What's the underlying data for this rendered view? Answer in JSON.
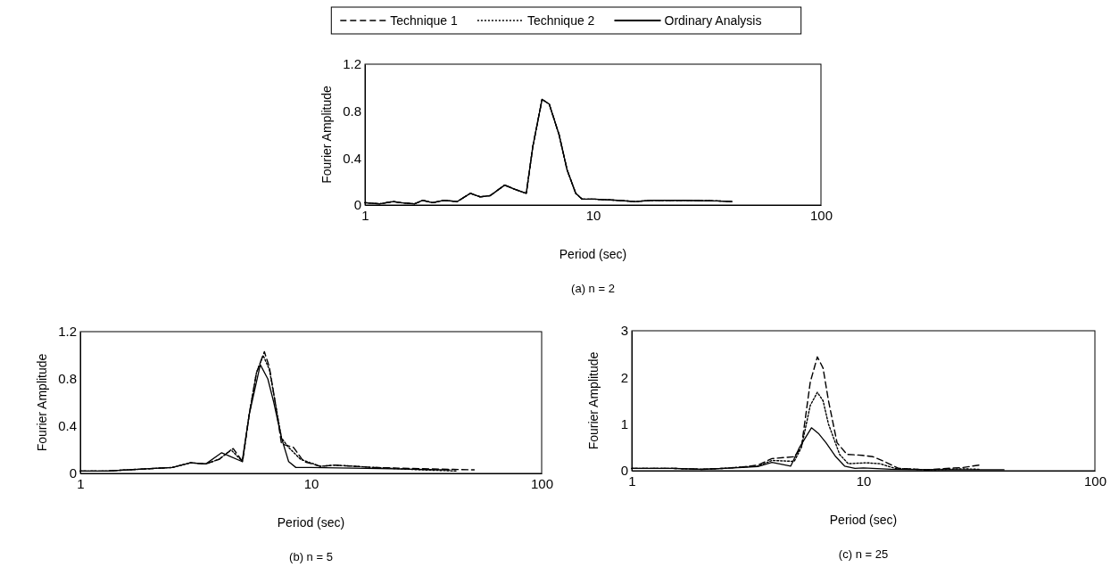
{
  "chart_data": [
    {
      "type": "line",
      "title": "(a) n = 2",
      "xlabel": "Period (sec)",
      "ylabel": "Fourier Amplitude",
      "log": "x",
      "xlim": [
        1,
        100
      ],
      "xticks": [
        1,
        10,
        100
      ],
      "ylim": [
        0,
        1.2
      ],
      "yticks": [
        0,
        0.4,
        0.8,
        1.2
      ],
      "grid": false,
      "legend": "top",
      "marker": "none",
      "series": [
        {
          "name": "Technique 1",
          "color": "#000000",
          "line_style": "dashed",
          "x": [
            1,
            1.16,
            1.33,
            1.44,
            1.65,
            1.79,
            1.98,
            2.22,
            2.54,
            2.9,
            3.2,
            3.54,
            4.1,
            4.6,
            5.1,
            5.45,
            5.98,
            6.43,
            7.1,
            7.7,
            8.4,
            8.97,
            10.2,
            12.9,
            15.3,
            18,
            25,
            35,
            40.7
          ],
          "values": [
            0.02,
            0.01,
            0.03,
            0.02,
            0.01,
            0.04,
            0.02,
            0.04,
            0.03,
            0.1,
            0.07,
            0.08,
            0.17,
            0.13,
            0.1,
            0.5,
            0.9,
            0.86,
            0.6,
            0.3,
            0.1,
            0.05,
            0.05,
            0.04,
            0.03,
            0.04,
            0.04,
            0.035,
            0.03
          ]
        },
        {
          "name": "Technique 2",
          "color": "#000000",
          "line_style": "dotted",
          "x": [
            1,
            1.16,
            1.33,
            1.44,
            1.65,
            1.79,
            1.98,
            2.22,
            2.54,
            2.9,
            3.2,
            3.54,
            4.1,
            4.6,
            5.1,
            5.45,
            5.98,
            6.43,
            7.1,
            7.7,
            8.4,
            8.97,
            10.2,
            12.9,
            15.3,
            18,
            25,
            35,
            40.7
          ],
          "values": [
            0.02,
            0.01,
            0.03,
            0.02,
            0.01,
            0.04,
            0.02,
            0.04,
            0.03,
            0.1,
            0.07,
            0.08,
            0.17,
            0.13,
            0.1,
            0.5,
            0.9,
            0.86,
            0.6,
            0.3,
            0.1,
            0.05,
            0.05,
            0.04,
            0.03,
            0.04,
            0.04,
            0.035,
            0.03
          ]
        },
        {
          "name": "Ordinary Analysis",
          "color": "#000000",
          "line_style": "solid",
          "x": [
            1,
            1.16,
            1.33,
            1.44,
            1.65,
            1.79,
            1.98,
            2.22,
            2.54,
            2.9,
            3.2,
            3.54,
            4.1,
            4.6,
            5.1,
            5.45,
            5.98,
            6.43,
            7.1,
            7.7,
            8.4,
            8.97,
            10.2,
            12.9,
            15.3,
            18,
            25,
            35,
            40.7
          ],
          "values": [
            0.02,
            0.01,
            0.03,
            0.02,
            0.01,
            0.04,
            0.02,
            0.04,
            0.03,
            0.1,
            0.07,
            0.08,
            0.17,
            0.13,
            0.1,
            0.5,
            0.9,
            0.86,
            0.6,
            0.3,
            0.1,
            0.05,
            0.05,
            0.04,
            0.03,
            0.04,
            0.04,
            0.035,
            0.03
          ]
        }
      ]
    },
    {
      "type": "line",
      "title": "(b) n = 5",
      "xlabel": "Period (sec)",
      "ylabel": "Fourier Amplitude",
      "log": "x",
      "xlim": [
        1,
        100
      ],
      "xticks": [
        1,
        10,
        100
      ],
      "ylim": [
        0,
        1.2
      ],
      "yticks": [
        0,
        0.4,
        0.8,
        1.2
      ],
      "grid": false,
      "marker": "none",
      "series": [
        {
          "color": "#000000",
          "line_style": "dashed",
          "x": [
            1,
            1.3,
            1.6,
            2,
            2.5,
            3,
            3.5,
            4,
            4.6,
            5.05,
            5.4,
            5.8,
            6.28,
            6.6,
            7,
            7.45,
            8.4,
            9.3,
            11,
            12.7,
            18.8,
            30,
            51
          ],
          "values": [
            0.02,
            0.02,
            0.03,
            0.04,
            0.05,
            0.09,
            0.08,
            0.12,
            0.21,
            0.1,
            0.5,
            0.85,
            1.03,
            0.9,
            0.6,
            0.25,
            0.22,
            0.1,
            0.06,
            0.07,
            0.05,
            0.04,
            0.03
          ]
        },
        {
          "color": "#000000",
          "line_style": "dotted",
          "x": [
            1,
            1.3,
            1.6,
            2,
            2.5,
            3,
            3.5,
            4,
            4.5,
            5.05,
            5.4,
            5.8,
            6.2,
            6.6,
            7,
            7.45,
            8,
            9,
            11,
            12.7,
            18.8,
            30,
            43
          ],
          "values": [
            0.02,
            0.02,
            0.03,
            0.04,
            0.05,
            0.09,
            0.08,
            0.12,
            0.2,
            0.1,
            0.5,
            0.85,
            1.0,
            0.88,
            0.6,
            0.3,
            0.22,
            0.12,
            0.06,
            0.07,
            0.05,
            0.03,
            0.02
          ]
        },
        {
          "color": "#000000",
          "line_style": "solid",
          "x": [
            1,
            1.3,
            1.6,
            2,
            2.5,
            3,
            3.5,
            4.1,
            5.03,
            5.4,
            6.03,
            6.5,
            6.9,
            7.45,
            8,
            8.6,
            10,
            20,
            40
          ],
          "values": [
            0.02,
            0.02,
            0.03,
            0.04,
            0.05,
            0.09,
            0.08,
            0.175,
            0.1,
            0.5,
            0.92,
            0.8,
            0.6,
            0.3,
            0.1,
            0.05,
            0.05,
            0.04,
            0.03
          ]
        }
      ]
    },
    {
      "type": "line",
      "title": "(c) n = 25",
      "xlabel": "Period (sec)",
      "ylabel": "Fourier Amplitude",
      "log": "x",
      "xlim": [
        1,
        100
      ],
      "xticks": [
        1,
        10,
        100
      ],
      "ylim": [
        0,
        3
      ],
      "yticks": [
        0,
        1,
        2,
        3
      ],
      "grid": false,
      "marker": "none",
      "series": [
        {
          "color": "#000000",
          "line_style": "dashed",
          "x": [
            1,
            1.5,
            2,
            2.5,
            3,
            3.5,
            4.03,
            5.03,
            5.4,
            5.9,
            6.33,
            6.7,
            7.07,
            7.7,
            8.5,
            9.9,
            11,
            12.3,
            14.2,
            18.8,
            27,
            31.6
          ],
          "values": [
            0.05,
            0.05,
            0.03,
            0.05,
            0.08,
            0.12,
            0.26,
            0.3,
            0.5,
            1.9,
            2.44,
            2.2,
            1.5,
            0.6,
            0.35,
            0.33,
            0.3,
            0.2,
            0.05,
            0.02,
            0.07,
            0.12
          ]
        },
        {
          "color": "#000000",
          "line_style": "dotted",
          "x": [
            1,
            1.5,
            2,
            2.5,
            3,
            3.5,
            4.03,
            5.03,
            5.4,
            5.9,
            6.33,
            6.7,
            7.07,
            7.9,
            8.6,
            10.3,
            11.8,
            13.7,
            18.8,
            27,
            32
          ],
          "values": [
            0.05,
            0.05,
            0.03,
            0.05,
            0.08,
            0.1,
            0.22,
            0.2,
            0.5,
            1.4,
            1.68,
            1.5,
            1.0,
            0.35,
            0.15,
            0.17,
            0.15,
            0.05,
            0.02,
            0.04,
            0.03
          ]
        },
        {
          "color": "#000000",
          "line_style": "solid",
          "x": [
            1,
            1.5,
            2,
            2.5,
            3,
            3.5,
            4.03,
            4.86,
            5.3,
            5.97,
            6.4,
            6.9,
            7.6,
            8.3,
            9.2,
            10,
            13.2,
            20,
            40.5
          ],
          "values": [
            0.05,
            0.05,
            0.03,
            0.05,
            0.07,
            0.09,
            0.18,
            0.1,
            0.5,
            0.92,
            0.8,
            0.6,
            0.3,
            0.1,
            0.05,
            0.06,
            0.03,
            0.02,
            0.02
          ]
        }
      ]
    }
  ]
}
